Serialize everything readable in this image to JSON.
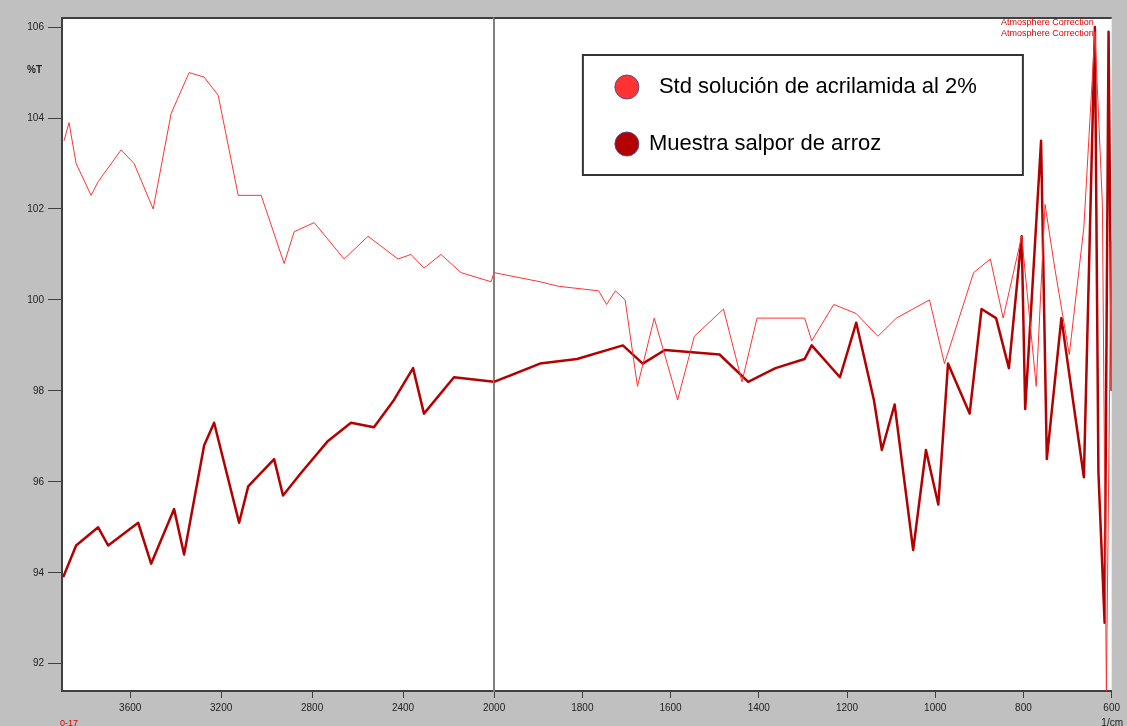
{
  "chart_data": [
    {
      "type": "line",
      "ylabel": "%T",
      "annotations": [
        "0-17"
      ],
      "xlim": [
        3900,
        2000
      ],
      "xticks": [
        3600,
        3200,
        2800,
        2400
      ],
      "ylim": [
        91.4,
        106.2
      ],
      "yticks": [
        92,
        94,
        96,
        98,
        100,
        102,
        104,
        106
      ],
      "grid": false,
      "series": [
        {
          "color": "#ff3333",
          "x": [
            3891,
            3869,
            3838,
            3772,
            3741,
            3640,
            3583,
            3499,
            3420,
            3341,
            3275,
            3213,
            3125,
            3024,
            2923,
            2879,
            2791,
            2659,
            2554,
            2422,
            2365,
            2308,
            2233,
            2145,
            2013,
            2000
          ],
          "values": [
            103.5,
            103.9,
            103.0,
            102.3,
            102.6,
            103.3,
            103.0,
            102.0,
            104.1,
            105.0,
            104.9,
            104.5,
            102.3,
            102.3,
            100.8,
            101.5,
            101.7,
            100.9,
            101.4,
            100.9,
            101.0,
            100.7,
            101.0,
            100.6,
            100.4,
            100.6
          ]
        },
        {
          "color": "#b30000",
          "x": [
            3895,
            3838,
            3741,
            3697,
            3565,
            3508,
            3407,
            3363,
            3275,
            3231,
            3121,
            3081,
            2967,
            2928,
            2848,
            2730,
            2629,
            2528,
            2440,
            2356,
            2308,
            2176,
            2000
          ],
          "values": [
            93.9,
            94.6,
            95.0,
            94.6,
            95.1,
            94.2,
            95.4,
            94.4,
            96.8,
            97.3,
            95.1,
            95.9,
            96.5,
            95.7,
            96.2,
            96.9,
            97.3,
            97.2,
            97.8,
            98.5,
            97.5,
            98.3,
            98.2
          ]
        }
      ]
    },
    {
      "type": "line",
      "xlabel": "1/cm",
      "annotations": [
        "Atmosphere Correction",
        "Atmosphere Correction"
      ],
      "xlim": [
        2000,
        600
      ],
      "xticks": [
        2000,
        1800,
        1600,
        1400,
        1200,
        1000,
        800,
        600
      ],
      "ylim": [
        91.4,
        106.2
      ],
      "tick_labels": "x",
      "grid": false,
      "legend": "top",
      "series": [
        {
          "name": "Std solución de acrilamida al 2%",
          "color": "#ff3333",
          "x": [
            2000,
            1896,
            1854,
            1763,
            1745,
            1725,
            1703,
            1675,
            1637,
            1584,
            1546,
            1480,
            1438,
            1404,
            1296,
            1280,
            1230,
            1179,
            1130,
            1088,
            1013,
            979,
            913,
            875,
            846,
            804,
            771,
            751,
            729,
            696,
            663,
            638,
            621,
            612,
            601
          ],
          "values": [
            100.6,
            100.4,
            100.3,
            100.2,
            99.9,
            100.2,
            100.0,
            98.1,
            99.6,
            97.8,
            99.2,
            99.8,
            98.2,
            99.6,
            99.6,
            99.1,
            99.9,
            99.7,
            99.2,
            99.6,
            100.0,
            98.6,
            100.6,
            100.9,
            99.6,
            101.4,
            98.1,
            102.1,
            100.7,
            98.8,
            101.6,
            105.9,
            102.1,
            91.4,
            101.3
          ]
        },
        {
          "name": "Muestra salpor de arroz",
          "color": "#b30000",
          "x": [
            2000,
            1896,
            1812,
            1708,
            1663,
            1613,
            1489,
            1424,
            1362,
            1296,
            1280,
            1216,
            1179,
            1139,
            1121,
            1092,
            1050,
            1021,
            993,
            971,
            922,
            895,
            862,
            833,
            804,
            796,
            760,
            747,
            714,
            663,
            638,
            630,
            616,
            607,
            600
          ],
          "values": [
            98.2,
            98.6,
            98.7,
            99.0,
            98.6,
            98.9,
            98.8,
            98.2,
            98.5,
            98.7,
            99.0,
            98.3,
            99.5,
            97.8,
            96.7,
            97.7,
            94.5,
            96.7,
            95.5,
            98.6,
            97.5,
            99.8,
            99.6,
            98.5,
            101.4,
            97.6,
            103.5,
            96.5,
            99.6,
            96.1,
            106.0,
            96.2,
            92.9,
            105.9,
            98.0
          ]
        }
      ]
    }
  ]
}
